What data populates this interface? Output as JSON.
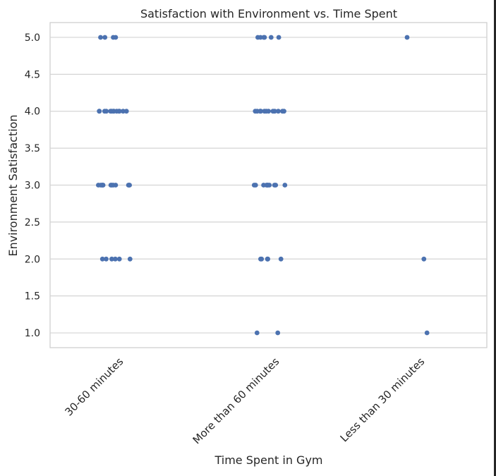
{
  "chart_data": {
    "type": "scatter",
    "subtype": "strip",
    "title": "Satisfaction with Environment vs. Time Spent",
    "xlabel": "Time Spent in Gym",
    "ylabel": "Environment Satisfaction",
    "categories": [
      "30-60 minutes",
      "More than 60 minutes",
      "Less than 30 minutes"
    ],
    "yticks": [
      "1.0",
      "1.5",
      "2.0",
      "2.5",
      "3.0",
      "3.5",
      "4.0",
      "4.5",
      "5.0"
    ],
    "ylim": [
      0.8,
      5.2
    ],
    "grid": "horizontal",
    "point_color": "#4c72b0",
    "points": [
      {
        "category": "30-60 minutes",
        "values": [
          5,
          5,
          5,
          5,
          4,
          4,
          4,
          4,
          4,
          4,
          4,
          4,
          4,
          4,
          4,
          4,
          4,
          3,
          3,
          3,
          3,
          3,
          3,
          3,
          3,
          3,
          3,
          3,
          3,
          2,
          2,
          2,
          2,
          2,
          2
        ]
      },
      {
        "category": "More than 60 minutes",
        "values": [
          5,
          5,
          5,
          5,
          5,
          5,
          4,
          4,
          4,
          4,
          4,
          4,
          4,
          4,
          4,
          4,
          4,
          4,
          4,
          3,
          3,
          3,
          3,
          3,
          3,
          3,
          3,
          3,
          3,
          2,
          2,
          2,
          2,
          2,
          2,
          1,
          1
        ]
      },
      {
        "category": "Less than 30 minutes",
        "values": [
          5,
          2,
          1
        ]
      }
    ]
  }
}
